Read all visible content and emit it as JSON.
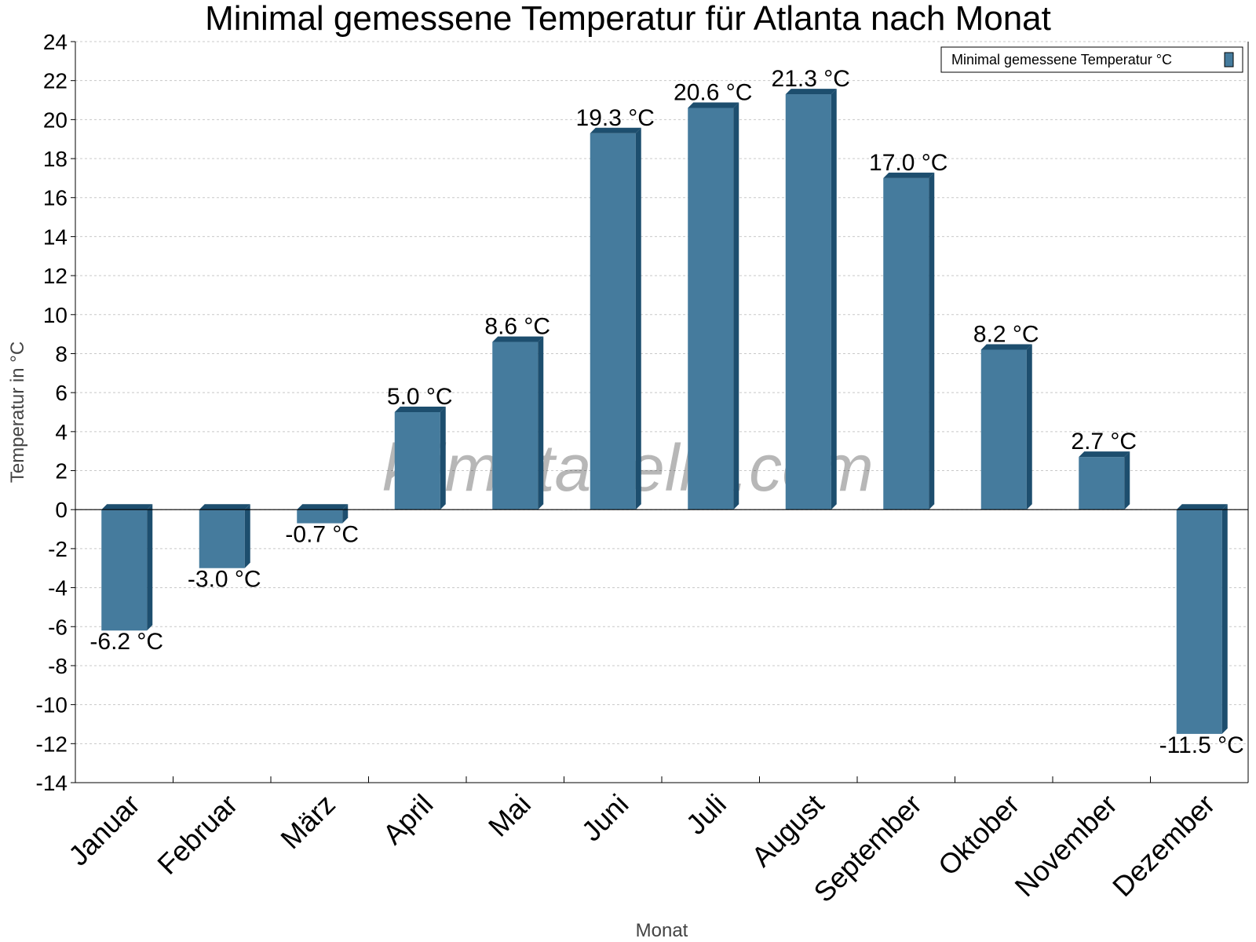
{
  "chart_data": {
    "type": "bar",
    "title": "Minimal gemessene Temperatur für Atlanta nach Monat",
    "xlabel": "Monat",
    "ylabel": "Temperatur in °C",
    "ylim": [
      -14,
      24
    ],
    "ytick_step": 2,
    "grid": true,
    "legend_position": "top-right",
    "categories": [
      "Januar",
      "Februar",
      "März",
      "April",
      "Mai",
      "Juni",
      "Juli",
      "August",
      "September",
      "Oktober",
      "November",
      "Dezember"
    ],
    "series": [
      {
        "name": "Minimal gemessene Temperatur °C",
        "values": [
          -6.2,
          -3.0,
          -0.7,
          5.0,
          8.6,
          19.3,
          20.6,
          21.3,
          17.0,
          8.2,
          2.7,
          -11.5
        ],
        "labels": [
          "-6.2 °C",
          "-3.0 °C",
          "-0.7 °C",
          "5.0 °C",
          "8.6 °C",
          "19.3 °C",
          "20.6 °C",
          "21.3 °C",
          "17.0 °C",
          "8.2 °C",
          "2.7 °C",
          "-11.5 °C"
        ],
        "color": "#457b9d",
        "side_color": "#1d4e6e"
      }
    ],
    "watermark": "klimatabelle.com"
  }
}
